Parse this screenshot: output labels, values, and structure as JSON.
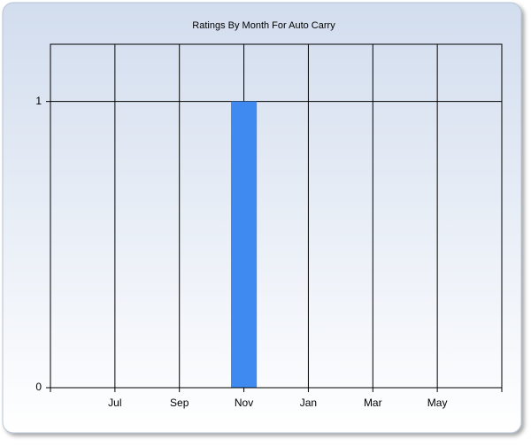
{
  "chart_data": {
    "type": "bar",
    "title": "Ratings By Month For Auto Carry",
    "categories": [
      null,
      null,
      "Jul",
      null,
      "Sep",
      null,
      "Nov",
      null,
      "Jan",
      null,
      "Mar",
      null,
      "May",
      null,
      null
    ],
    "values": [
      null,
      null,
      null,
      null,
      null,
      null,
      1,
      null,
      null,
      null,
      null,
      null,
      null,
      null,
      null
    ],
    "color": "#3f8af0",
    "ylim": [
      0,
      1.2
    ],
    "yticks": [
      0,
      1
    ],
    "grid": true
  }
}
